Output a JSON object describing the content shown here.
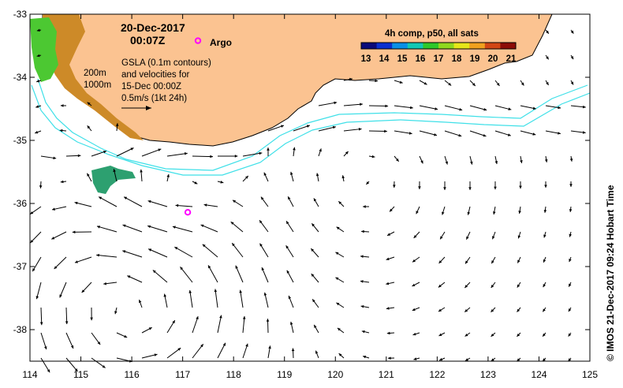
{
  "map": {
    "date": "20-Dec-2017",
    "time": "00:07Z",
    "argo_label": "Argo",
    "contour_labels": [
      "200m",
      "1000m"
    ],
    "gsla_lines": [
      "GSLA (0.1m contours)",
      "and velocities for",
      "15-Dec 00:00Z",
      "0.5m/s (1kt 24h)"
    ],
    "credit": "©  IMOS 21-Dec-2017 09:24 Hobart Time",
    "lon_range": [
      114,
      125
    ],
    "lat_range": [
      -38.5,
      -33
    ],
    "lon_ticks": [
      "114",
      "115",
      "116",
      "117",
      "118",
      "119",
      "120",
      "121",
      "122",
      "123",
      "124",
      "125"
    ],
    "lat_ticks": [
      "-33",
      "-34",
      "-35",
      "-36",
      "-37",
      "-38"
    ],
    "argo_floats": [
      {
        "lon": 117.3,
        "lat": -33.42
      },
      {
        "lon": 117.1,
        "lat": -36.14
      }
    ]
  },
  "colorbar": {
    "title": "4h comp, p50, all sats",
    "ticks": [
      "13",
      "14",
      "15",
      "16",
      "17",
      "18",
      "19",
      "20",
      "21"
    ],
    "colors": [
      "#0a0a7a",
      "#0a2fd0",
      "#0a8fe6",
      "#12c8b4",
      "#2ec82a",
      "#8fd81e",
      "#e6e619",
      "#f0a01e",
      "#d24614",
      "#8c0c08"
    ]
  },
  "colors": {
    "land": "#fbc391",
    "cyan": "#3fe0e8",
    "argo": "#ff00ff",
    "sst_warm": "#cd8a28",
    "sst_green": "#4cc832",
    "sst_teal": "#2da070"
  }
}
